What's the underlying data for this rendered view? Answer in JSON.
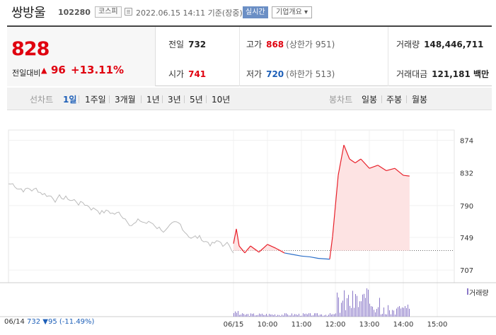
{
  "header": {
    "name": "쌍방울",
    "code": "102280",
    "market": "코스피",
    "timestamp": "2022.06.15 14:11 기준(장중)",
    "realtime": "실시간",
    "company": "기업개요 ▾"
  },
  "summary": {
    "price": "828",
    "change_label": "전일대비",
    "change_arrow": "▲",
    "change_value": "96",
    "change_pct": "+13.11%",
    "prev_label": "전일",
    "prev_value": "732",
    "open_label": "시가",
    "open_value": "741",
    "high_label": "고가",
    "high_value": "868",
    "high_limit": "(상한가 951)",
    "low_label": "저가",
    "low_value": "720",
    "low_limit": "(하한가 513)",
    "volume_label": "거래량",
    "volume_value": "148,446,711",
    "amount_label": "거래대금",
    "amount_value": "121,181 백만"
  },
  "period_bar": {
    "left_label": "선차트",
    "left_items": [
      "1일",
      "1주일",
      "3개월",
      "1년",
      "3년",
      "5년",
      "10년"
    ],
    "active": "1일",
    "right_label": "봉차트",
    "right_items": [
      "일봉",
      "주봉",
      "월봉"
    ]
  },
  "chart": {
    "y_ticks": [
      "874",
      "832",
      "790",
      "749",
      "707"
    ],
    "x_ticks": [
      "06/15",
      "10:00",
      "11:00",
      "12:00",
      "13:00",
      "14:00",
      "15:00"
    ],
    "volume_label": "거래량",
    "prev_info_date": "06/14",
    "prev_info_value": "732",
    "prev_info_change": "▼95",
    "prev_info_pct": "(-11.49%)",
    "colors": {
      "up": "#e8202a",
      "down": "#2a6fc9",
      "prev": "#bbbbbb",
      "fill": "#fde3e3",
      "volume": "#8a78c8"
    }
  },
  "chart_data": {
    "type": "line",
    "ylim": [
      698,
      880
    ],
    "y_ticks": [
      874,
      832,
      790,
      749,
      707
    ],
    "x": [
      "09:00",
      "10:00",
      "11:00",
      "12:00",
      "13:00",
      "14:00",
      "14:11"
    ],
    "prev_close": 732,
    "today_series": [
      {
        "t": "09:00",
        "v": 741
      },
      {
        "t": "09:05",
        "v": 760
      },
      {
        "t": "09:10",
        "v": 738
      },
      {
        "t": "09:20",
        "v": 729
      },
      {
        "t": "09:30",
        "v": 738
      },
      {
        "t": "09:45",
        "v": 730
      },
      {
        "t": "10:00",
        "v": 740
      },
      {
        "t": "10:15",
        "v": 735
      },
      {
        "t": "10:30",
        "v": 729
      },
      {
        "t": "10:45",
        "v": 727
      },
      {
        "t": "11:00",
        "v": 725
      },
      {
        "t": "11:15",
        "v": 724
      },
      {
        "t": "11:30",
        "v": 722
      },
      {
        "t": "11:50",
        "v": 721
      },
      {
        "t": "11:55",
        "v": 750
      },
      {
        "t": "12:05",
        "v": 829
      },
      {
        "t": "12:15",
        "v": 868
      },
      {
        "t": "12:25",
        "v": 850
      },
      {
        "t": "12:35",
        "v": 845
      },
      {
        "t": "12:45",
        "v": 850
      },
      {
        "t": "13:00",
        "v": 838
      },
      {
        "t": "13:15",
        "v": 842
      },
      {
        "t": "13:30",
        "v": 835
      },
      {
        "t": "13:45",
        "v": 838
      },
      {
        "t": "14:00",
        "v": 829
      },
      {
        "t": "14:11",
        "v": 828
      }
    ]
  }
}
